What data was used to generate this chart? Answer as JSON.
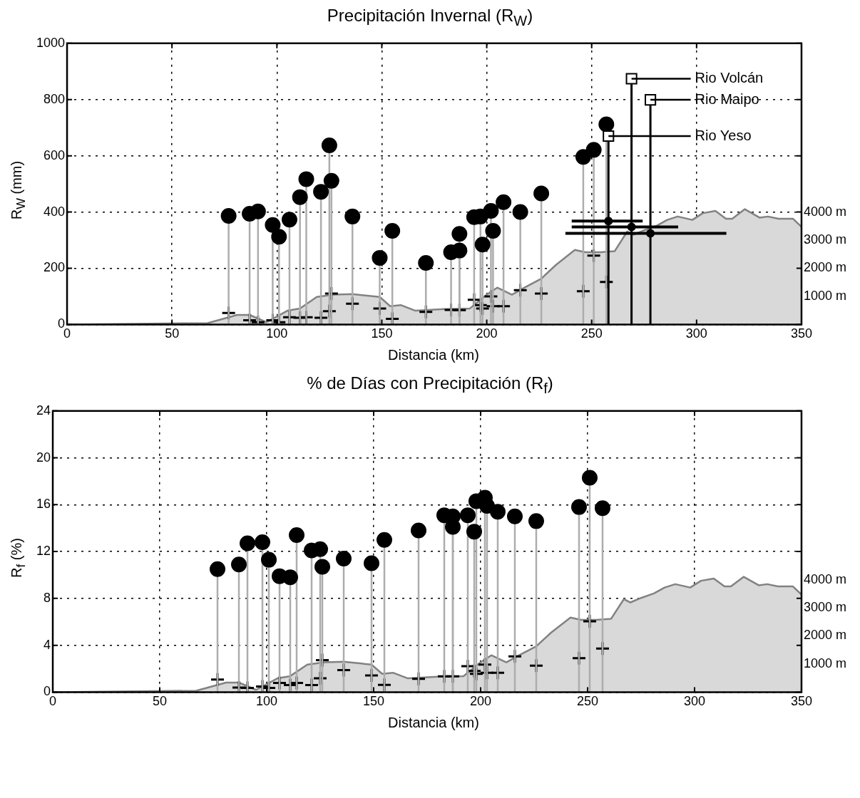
{
  "chart_data": [
    {
      "type": "scatter",
      "title": "Precipitación Invernal (R$_{W}$)",
      "xlabel": "Distancia (km)",
      "ylabel": "R$_{W}$ (mm)",
      "xlim": [
        0,
        350
      ],
      "xticks": [
        0,
        50,
        100,
        150,
        200,
        250,
        300,
        350
      ],
      "ylim": [
        0,
        1000
      ],
      "yticks": [
        0,
        200,
        400,
        600,
        800,
        1000
      ],
      "y2lim": [
        0,
        10000
      ],
      "y2ticks": [
        {
          "value": 1000,
          "label": "1000 m"
        },
        {
          "value": 2000,
          "label": "2000 m"
        },
        {
          "value": 3000,
          "label": "3000 m"
        },
        {
          "value": 4000,
          "label": "4000 m"
        }
      ],
      "grid": true,
      "legend": false,
      "series": [
        {
          "type": "area",
          "axis": "y2",
          "color": "#d9d9d9",
          "x": [
            0,
            67,
            81,
            87,
            95,
            105,
            111,
            119,
            127,
            136,
            149,
            154,
            159,
            166,
            180,
            192,
            200,
            205,
            212,
            218,
            226,
            233,
            242,
            247,
            254,
            261,
            267,
            270,
            275,
            281,
            286,
            291,
            298,
            303,
            309,
            314,
            317,
            323,
            330,
            334,
            339,
            346,
            350
          ],
          "values": [
            0,
            50,
            340,
            340,
            80,
            490,
            570,
            980,
            1060,
            1080,
            980,
            650,
            690,
            490,
            550,
            570,
            1060,
            1310,
            1060,
            1310,
            1630,
            2120,
            2650,
            2570,
            2570,
            2610,
            3310,
            3190,
            3350,
            3510,
            3720,
            3840,
            3720,
            3960,
            4040,
            3760,
            3760,
            4100,
            3800,
            3840,
            3760,
            3760,
            3470
          ]
        },
        {
          "type": "scatter",
          "axis": "y2",
          "marker": "cross",
          "color": "#000000",
          "x": [
            77,
            87,
            91,
            98,
            101,
            106,
            111,
            114,
            121,
            125,
            126,
            136,
            149,
            155,
            171,
            183,
            187,
            194,
            197,
            198,
            202,
            203,
            208,
            216,
            226,
            246,
            251,
            257
          ],
          "values": [
            410,
            150,
            80,
            150,
            80,
            260,
            240,
            260,
            240,
            470,
            1100,
            740,
            570,
            200,
            450,
            520,
            510,
            880,
            690,
            570,
            1000,
            650,
            650,
            1220,
            1100,
            1180,
            2450,
            1510
          ]
        },
        {
          "type": "lollipop",
          "marker": "circle",
          "color": "#000000",
          "x": [
            77,
            87,
            91,
            98,
            101,
            106,
            111,
            114,
            121,
            125,
            126,
            136,
            149,
            155,
            171,
            183,
            187,
            187,
            194,
            197,
            198,
            202,
            203,
            208,
            216,
            226,
            246,
            251,
            257
          ],
          "values": [
            386,
            394,
            402,
            354,
            312,
            373,
            453,
            517,
            472,
            637,
            511,
            384,
            237,
            333,
            219,
            257,
            263,
            322,
            382,
            384,
            284,
            404,
            333,
            435,
            400,
            466,
            596,
            621,
            712
          ]
        },
        {
          "type": "scatter",
          "axis": "y2",
          "marker": "circle",
          "color": "#000000",
          "x": [
            269,
            278,
            258
          ],
          "values": [
            3470,
            3240,
            3680
          ],
          "xerrors": [
            [
              240.5,
              291.2
            ],
            [
              237.5,
              314.2
            ],
            [
              240.5,
              274.3
            ]
          ]
        },
        {
          "type": "lollipop",
          "marker": "square",
          "color": "#000000",
          "x": [
            269,
            278,
            258
          ],
          "values": [
            874,
            799,
            670
          ]
        }
      ],
      "annotations": [
        "Rio Volcán",
        "Rio Maipo",
        {
          "text": "Rio Yeso",
          "x": 258,
          "y": 670
        }
      ]
    },
    {
      "type": "scatter",
      "title": "% de Días con Precipitación (R$_{f}$)",
      "xlabel": "Distancia (km)",
      "ylabel": "R$_{f}$ (%)",
      "xlim": [
        0,
        350
      ],
      "xticks": [
        0,
        50,
        100,
        150,
        200,
        250,
        300,
        350
      ],
      "ylim": [
        0,
        24
      ],
      "yticks": [
        0,
        4,
        8,
        12,
        16,
        20,
        24
      ],
      "y2lim": [
        0,
        10000
      ],
      "y2ticks": [
        {
          "value": 1000,
          "label": "1000 m"
        },
        {
          "value": 2000,
          "label": "2000 m"
        },
        {
          "value": 3000,
          "label": "3000 m"
        },
        {
          "value": 4000,
          "label": "4000 m"
        }
      ],
      "grid": true,
      "legend": false,
      "series": [
        {
          "type": "area",
          "axis": "y2",
          "color": "#d9d9d9",
          "x": [
            0,
            67,
            81,
            87,
            95,
            105,
            111,
            119,
            127,
            136,
            149,
            154,
            159,
            166,
            180,
            192,
            200,
            205,
            212,
            218,
            226,
            233,
            242,
            247,
            254,
            261,
            267,
            270,
            275,
            281,
            286,
            291,
            298,
            303,
            309,
            314,
            317,
            323,
            330,
            334,
            339,
            346,
            350
          ],
          "values": [
            0,
            50,
            340,
            340,
            80,
            490,
            570,
            980,
            1060,
            1080,
            980,
            650,
            690,
            490,
            550,
            570,
            1060,
            1310,
            1060,
            1310,
            1630,
            2120,
            2650,
            2570,
            2570,
            2610,
            3310,
            3190,
            3350,
            3510,
            3720,
            3840,
            3720,
            3960,
            4040,
            3760,
            3760,
            4100,
            3800,
            3840,
            3760,
            3760,
            3470
          ]
        },
        {
          "type": "scatter",
          "axis": "y2",
          "marker": "cross",
          "color": "#000000",
          "x": [
            77,
            87,
            91,
            98,
            101,
            106,
            111,
            114,
            121,
            125,
            126,
            136,
            149,
            155,
            171,
            183,
            187,
            194,
            197,
            198,
            202,
            203,
            208,
            216,
            226,
            246,
            251,
            257
          ],
          "values": [
            450,
            160,
            150,
            200,
            150,
            330,
            250,
            330,
            250,
            490,
            1140,
            780,
            590,
            260,
            470,
            560,
            560,
            920,
            750,
            650,
            980,
            690,
            690,
            1270,
            940,
            1210,
            2520,
            1550
          ]
        },
        {
          "type": "lollipop",
          "marker": "circle",
          "color": "#000000",
          "x": [
            77,
            87,
            91,
            98,
            101,
            106,
            111,
            114,
            121,
            125,
            126,
            136,
            149,
            155,
            171,
            183,
            187,
            187,
            194,
            197,
            198,
            202,
            203,
            208,
            216,
            226,
            246,
            251,
            257
          ],
          "values": [
            10.5,
            10.9,
            12.7,
            12.8,
            11.3,
            9.9,
            9.8,
            13.4,
            12.1,
            12.2,
            10.7,
            11.4,
            11.0,
            13.0,
            13.8,
            15.1,
            15.0,
            14.1,
            15.1,
            13.7,
            16.3,
            16.6,
            15.9,
            15.4,
            15.0,
            14.6,
            15.8,
            18.3,
            15.7
          ]
        }
      ]
    }
  ]
}
